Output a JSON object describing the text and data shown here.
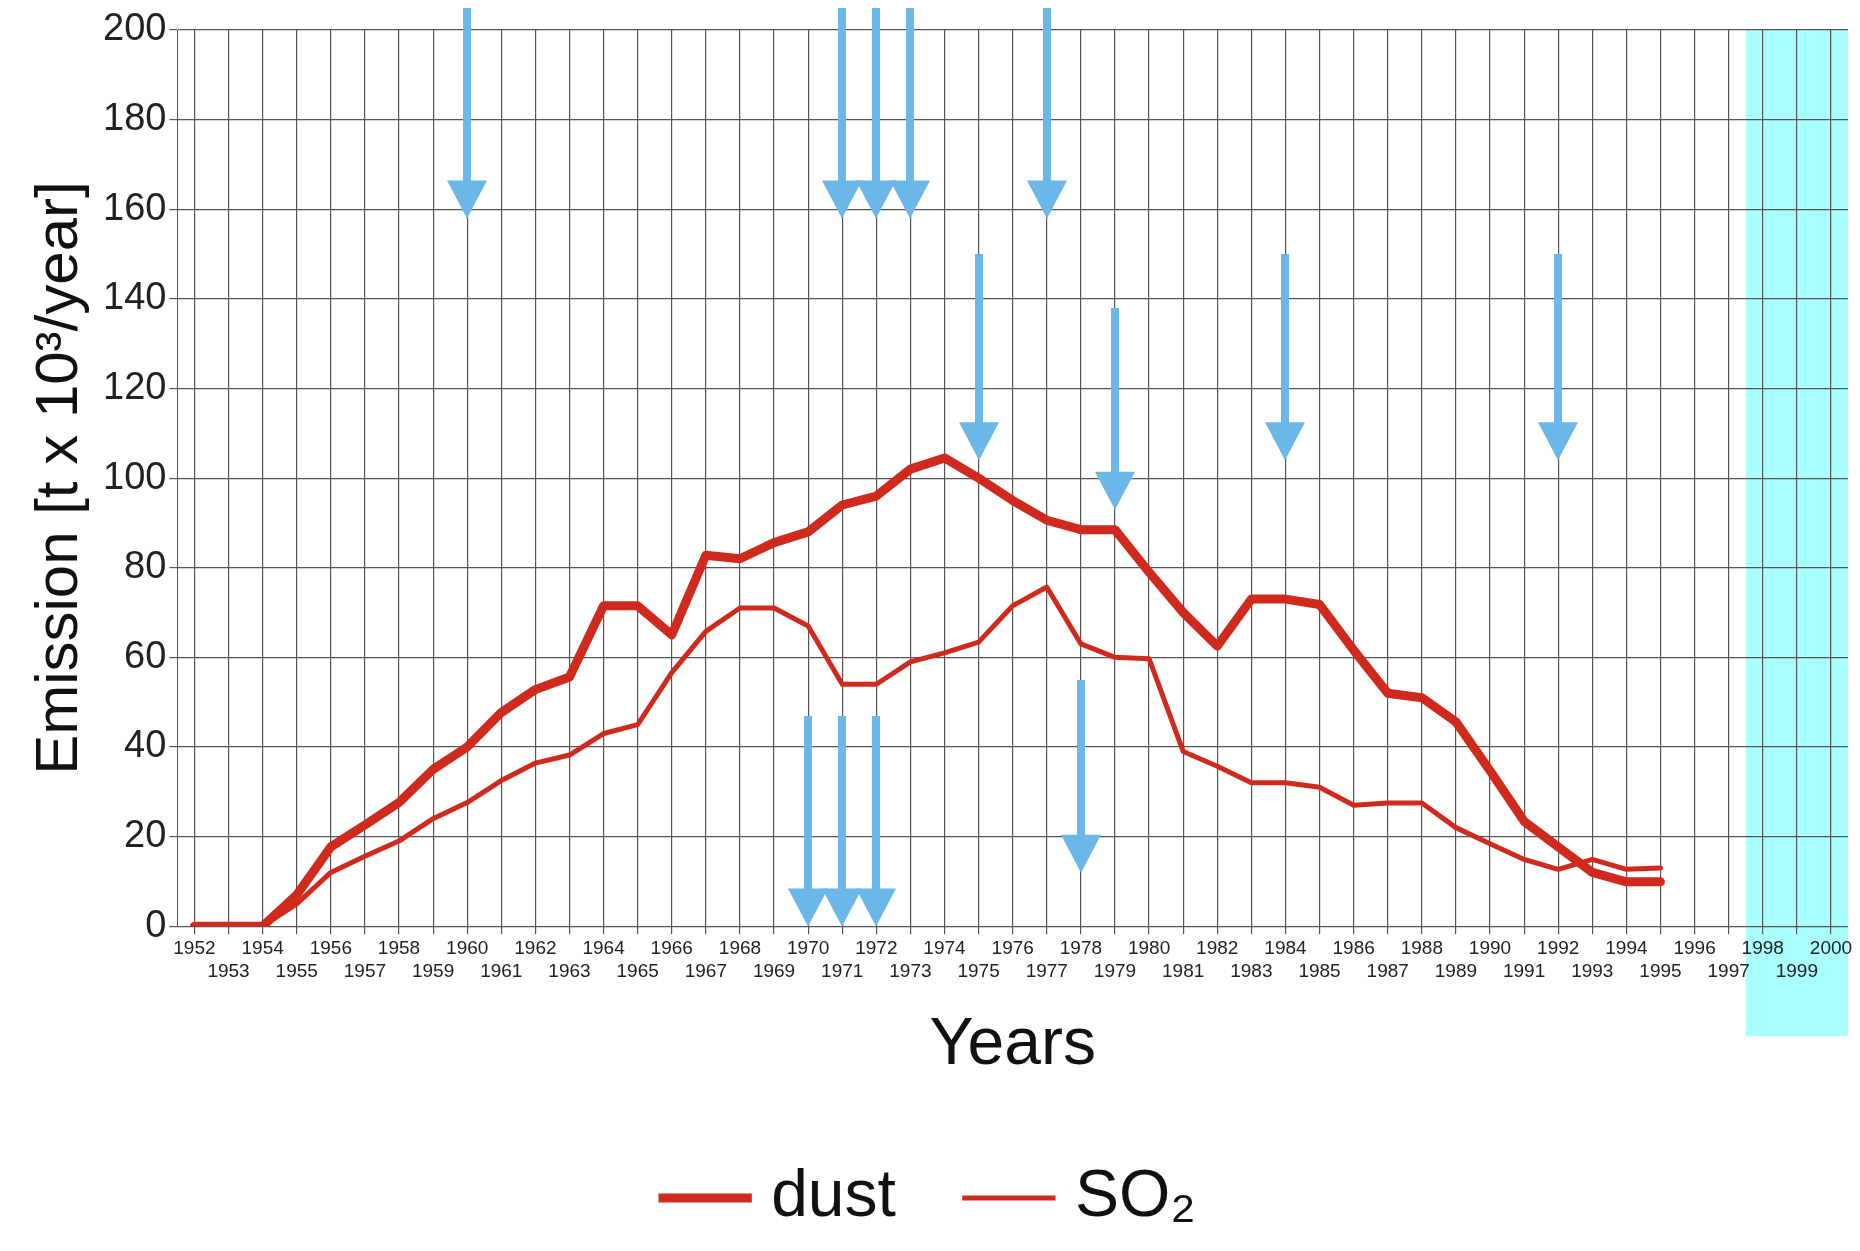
{
  "chart_data": {
    "type": "line",
    "xlabel": "Years",
    "ylabel": "Emission [t x 10³/year]",
    "categories": [
      "1952",
      "1953",
      "1954",
      "1955",
      "1956",
      "1957",
      "1958",
      "1959",
      "1960",
      "1961",
      "1962",
      "1963",
      "1964",
      "1965",
      "1966",
      "1967",
      "1968",
      "1969",
      "1970",
      "1971",
      "1972",
      "1973",
      "1974",
      "1975",
      "1976",
      "1977",
      "1978",
      "1979",
      "1980",
      "1981",
      "1982",
      "1983",
      "1984",
      "1985",
      "1986",
      "1987",
      "1988",
      "1989",
      "1990",
      "1991",
      "1992",
      "1993",
      "1994",
      "1995",
      "1996",
      "1997",
      "1998",
      "1999",
      "2000"
    ],
    "series": [
      {
        "name": "dust",
        "color": "#d02a1e",
        "values": [
          0,
          0,
          0,
          7,
          17.7,
          22.6,
          27.6,
          35,
          40,
          47.7,
          52.8,
          55.6,
          71.5,
          71.5,
          65,
          82.8,
          82,
          85.6,
          88,
          94,
          96,
          102,
          104.5,
          100,
          95,
          90.6,
          88.5,
          88.5,
          79,
          70,
          62.5,
          73,
          73,
          71.8,
          61.6,
          52,
          51,
          45.6,
          34.7,
          23.4,
          17.7,
          12,
          9.9,
          9.9,
          null,
          null,
          null,
          null,
          null
        ]
      },
      {
        "name": "SO₂",
        "color": "#d02a1e",
        "values": [
          0,
          0,
          0,
          5,
          12,
          15.6,
          19,
          24,
          27.6,
          32.5,
          36.4,
          38.2,
          43,
          45,
          56.6,
          65.8,
          71,
          71,
          67,
          54,
          54,
          59,
          61,
          63.4,
          71.5,
          75.7,
          63,
          60,
          59.7,
          39,
          35.7,
          32,
          32,
          31,
          27,
          27.5,
          27.5,
          22,
          18.4,
          14.9,
          12.7,
          14.9,
          12.7,
          13,
          null,
          null,
          null,
          null,
          null
        ]
      }
    ],
    "ylim": [
      0,
      200
    ],
    "yticks": [
      0,
      20,
      40,
      60,
      80,
      100,
      120,
      140,
      160,
      180,
      200
    ],
    "grid": true,
    "legend": "bottom",
    "marker": "none",
    "line_style": "solid",
    "bands": [
      {
        "axis": "x",
        "from": "1998",
        "to": "2000",
        "color": "#aaffff"
      }
    ]
  }
}
